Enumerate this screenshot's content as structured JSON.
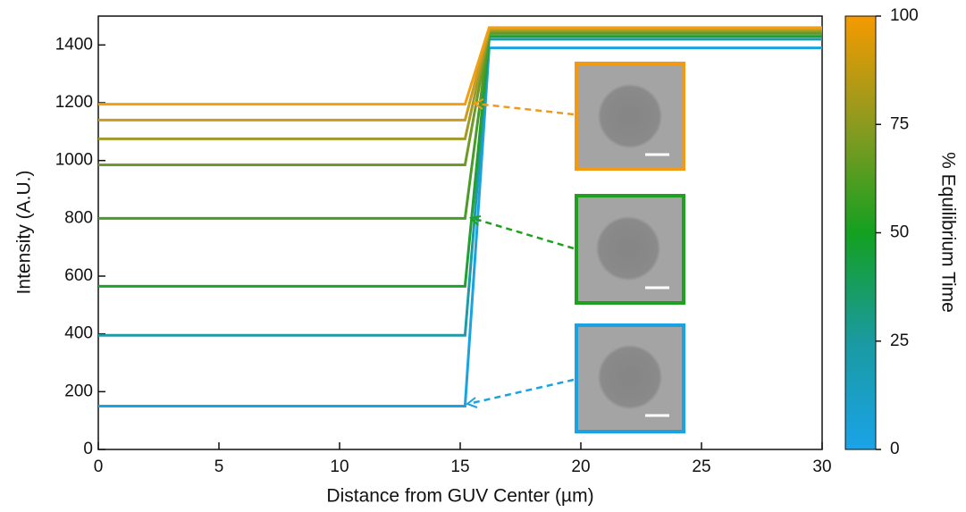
{
  "chart_data": {
    "type": "line",
    "xlabel": "Distance from GUV Center (µm)",
    "ylabel": "Intensity (A.U.)",
    "x": [
      0,
      15.2,
      16.2,
      30
    ],
    "series": [
      {
        "color": "#1aa3e0",
        "values": [
          150,
          150,
          1390,
          1390
        ]
      },
      {
        "color": "#1f9aa8",
        "values": [
          395,
          395,
          1420,
          1420
        ]
      },
      {
        "color": "#20a030",
        "values": [
          565,
          565,
          1430,
          1430
        ]
      },
      {
        "color": "#4a9c2a",
        "values": [
          800,
          800,
          1440,
          1440
        ]
      },
      {
        "color": "#6e9a28",
        "values": [
          985,
          985,
          1445,
          1445
        ]
      },
      {
        "color": "#a09a28",
        "values": [
          1075,
          1075,
          1450,
          1450
        ]
      },
      {
        "color": "#c89c20",
        "values": [
          1140,
          1140,
          1455,
          1455
        ]
      },
      {
        "color": "#f0a012",
        "values": [
          1195,
          1195,
          1460,
          1460
        ]
      }
    ],
    "xlim": [
      0,
      30
    ],
    "xticks": [
      0,
      5,
      10,
      15,
      20,
      25,
      30
    ],
    "ylim": [
      0,
      1500
    ],
    "yticks": [
      0,
      200,
      400,
      600,
      800,
      1000,
      1200,
      1400
    ],
    "colorbar": {
      "label": "% Equilibrium Time",
      "lim": [
        0,
        100
      ],
      "ticks": [
        0,
        25,
        50,
        75,
        100
      ],
      "colors": [
        "#1aa3e8",
        "#1a9aa0",
        "#14a020",
        "#8c9a20",
        "#f59a00"
      ]
    }
  }
}
